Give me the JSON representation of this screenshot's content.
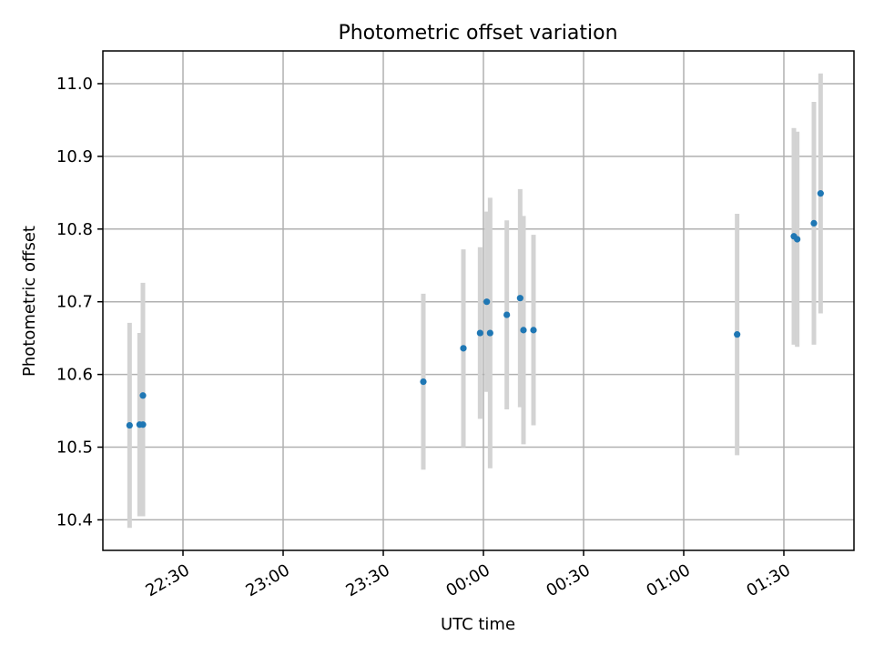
{
  "chart_data": {
    "type": "scatter",
    "title": "Photometric offset variation",
    "xlabel": "UTC time",
    "ylabel": "Photometric offset",
    "x_ticks": [
      "22:30",
      "23:00",
      "23:30",
      "00:00",
      "00:30",
      "01:00",
      "01:30"
    ],
    "y_ticks": [
      "10.4",
      "10.5",
      "10.6",
      "10.7",
      "10.8",
      "10.9",
      "11.0"
    ],
    "xlim": [
      "22:06",
      "01:51"
    ],
    "ylim": [
      10.358,
      11.045
    ],
    "grid": true,
    "marker_color": "#1f77b4",
    "errorbar_color": "#d3d3d3",
    "points": [
      {
        "x": "22:14",
        "y": 10.53,
        "yerr": 0.141
      },
      {
        "x": "22:17",
        "y": 10.531,
        "yerr": 0.126
      },
      {
        "x": "22:18",
        "y": 10.531,
        "yerr": 0.126
      },
      {
        "x": "22:18",
        "y": 10.571,
        "yerr": 0.155
      },
      {
        "x": "23:42",
        "y": 10.59,
        "yerr": 0.121
      },
      {
        "x": "23:54",
        "y": 10.636,
        "yerr": 0.136
      },
      {
        "x": "23:59",
        "y": 10.657,
        "yerr": 0.118
      },
      {
        "x": "00:01",
        "y": 10.7,
        "yerr": 0.124
      },
      {
        "x": "00:02",
        "y": 10.657,
        "yerr": 0.186
      },
      {
        "x": "00:07",
        "y": 10.682,
        "yerr": 0.13
      },
      {
        "x": "00:11",
        "y": 10.705,
        "yerr": 0.15
      },
      {
        "x": "00:12",
        "y": 10.661,
        "yerr": 0.157
      },
      {
        "x": "00:15",
        "y": 10.661,
        "yerr": 0.131
      },
      {
        "x": "01:16",
        "y": 10.655,
        "yerr": 0.166
      },
      {
        "x": "01:33",
        "y": 10.79,
        "yerr": 0.149
      },
      {
        "x": "01:34",
        "y": 10.786,
        "yerr": 0.148
      },
      {
        "x": "01:39",
        "y": 10.808,
        "yerr": 0.167
      },
      {
        "x": "01:41",
        "y": 10.849,
        "yerr": 0.165
      }
    ]
  }
}
